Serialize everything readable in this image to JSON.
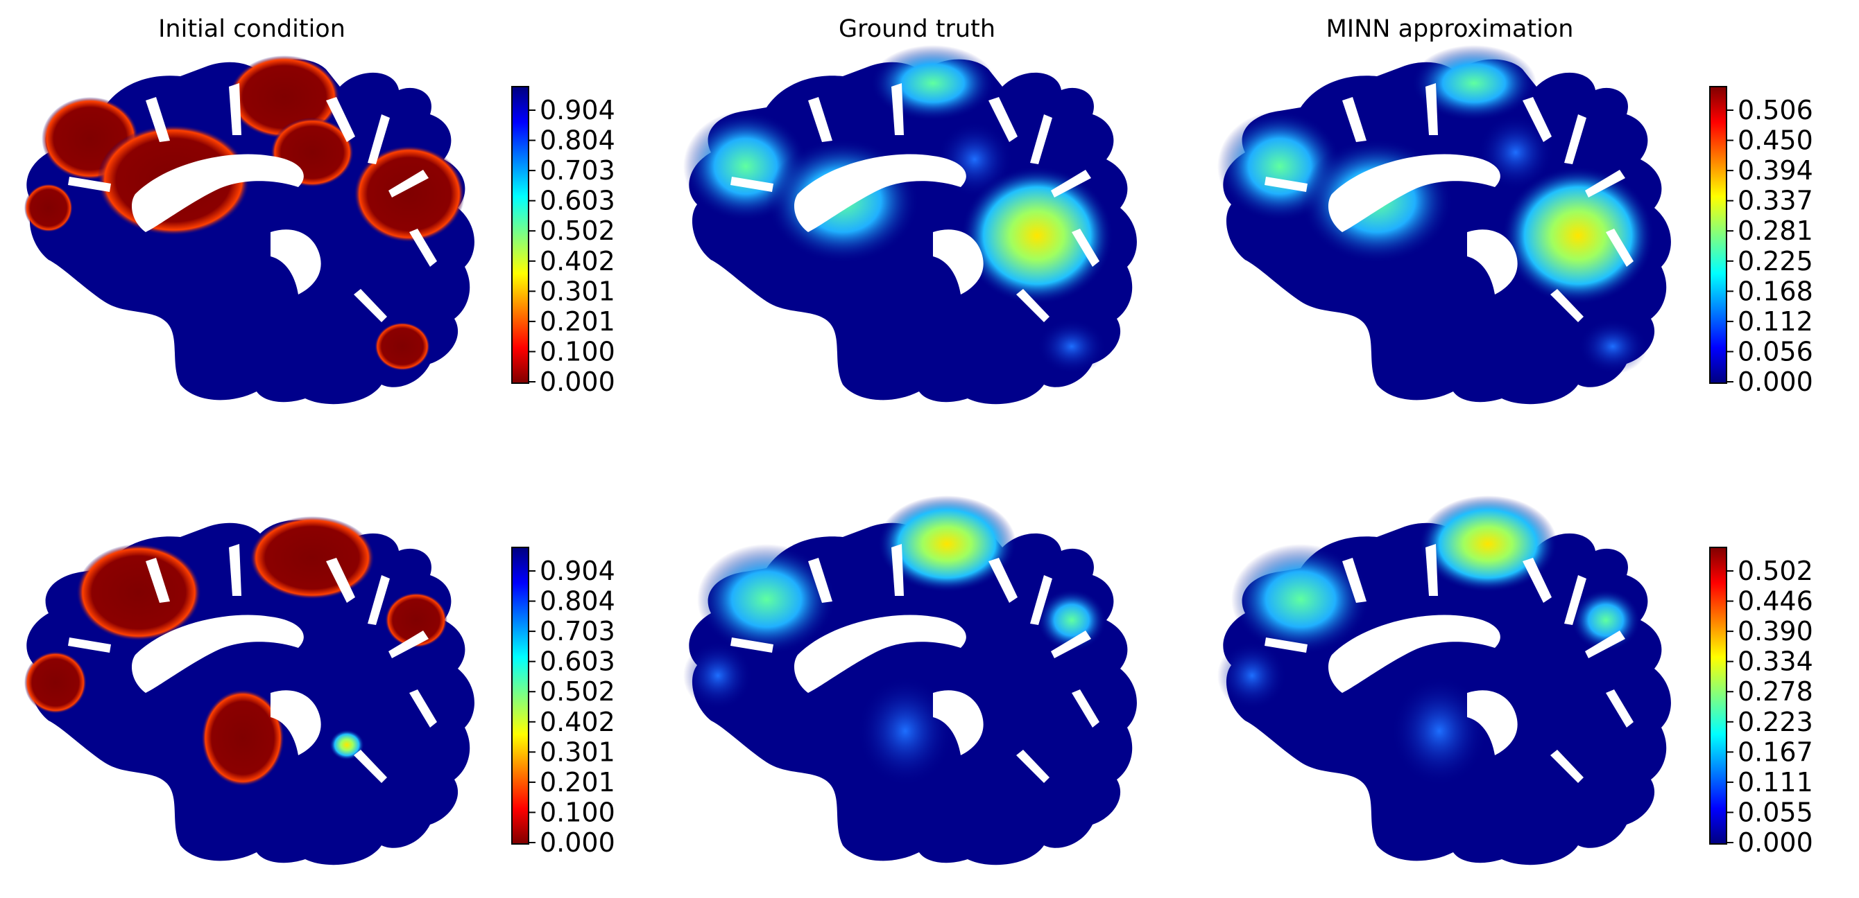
{
  "titles": {
    "initial": "Initial condition",
    "truth": "Ground truth",
    "minn": "MINN approximation"
  },
  "colors": {
    "background_tissue": "#00008b",
    "cmap": "jet"
  },
  "colorbars": [
    {
      "id": "row1-initial",
      "reversed": true,
      "ticks": [
        "0.000",
        "0.100",
        "0.201",
        "0.301",
        "0.402",
        "0.502",
        "0.603",
        "0.703",
        "0.804",
        "0.904"
      ]
    },
    {
      "id": "row1-minn",
      "reversed": false,
      "ticks": [
        "0.000",
        "0.056",
        "0.112",
        "0.168",
        "0.225",
        "0.281",
        "0.337",
        "0.394",
        "0.450",
        "0.506"
      ]
    },
    {
      "id": "row2-initial",
      "reversed": true,
      "ticks": [
        "0.000",
        "0.100",
        "0.201",
        "0.301",
        "0.402",
        "0.502",
        "0.603",
        "0.703",
        "0.804",
        "0.904"
      ]
    },
    {
      "id": "row2-minn",
      "reversed": false,
      "ticks": [
        "0.000",
        "0.055",
        "0.111",
        "0.167",
        "0.223",
        "0.278",
        "0.334",
        "0.390",
        "0.446",
        "0.502"
      ]
    }
  ]
}
